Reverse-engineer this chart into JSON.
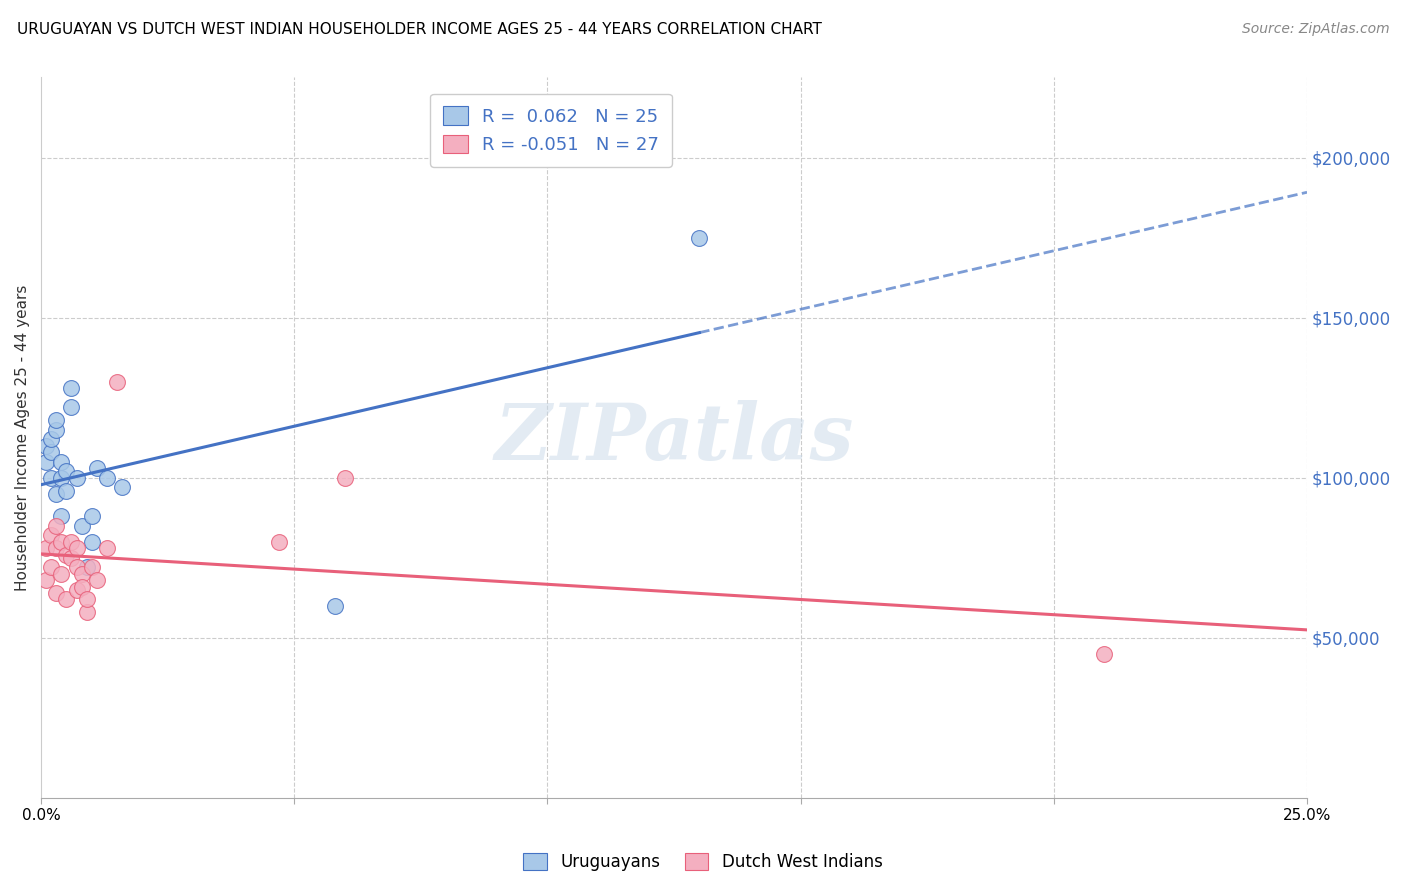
{
  "title": "URUGUAYAN VS DUTCH WEST INDIAN HOUSEHOLDER INCOME AGES 25 - 44 YEARS CORRELATION CHART",
  "source": "Source: ZipAtlas.com",
  "ylabel": "Householder Income Ages 25 - 44 years",
  "xlim": [
    0.0,
    0.25
  ],
  "ylim": [
    0,
    225000
  ],
  "yticks": [
    0,
    50000,
    100000,
    150000,
    200000
  ],
  "xticks": [
    0.0,
    0.05,
    0.1,
    0.15,
    0.2,
    0.25
  ],
  "xtick_labels": [
    "0.0%",
    "",
    "",
    "",
    "",
    "25.0%"
  ],
  "r_uruguayan": 0.062,
  "n_uruguayan": 25,
  "r_dutch": -0.051,
  "n_dutch": 27,
  "uruguayan_color": "#a8c8e8",
  "dutch_color": "#f4afc0",
  "trend_uruguayan_color": "#4472c4",
  "trend_dutch_color": "#e8607a",
  "watermark": "ZIPatlas",
  "uruguayan_x": [
    0.001,
    0.001,
    0.002,
    0.002,
    0.002,
    0.003,
    0.003,
    0.003,
    0.004,
    0.004,
    0.004,
    0.005,
    0.005,
    0.006,
    0.006,
    0.007,
    0.008,
    0.009,
    0.01,
    0.01,
    0.011,
    0.013,
    0.016,
    0.058,
    0.13
  ],
  "uruguayan_y": [
    105000,
    110000,
    108000,
    112000,
    100000,
    115000,
    118000,
    95000,
    105000,
    100000,
    88000,
    102000,
    96000,
    128000,
    122000,
    100000,
    85000,
    72000,
    88000,
    80000,
    103000,
    100000,
    97000,
    60000,
    175000
  ],
  "dutch_x": [
    0.001,
    0.001,
    0.002,
    0.002,
    0.003,
    0.003,
    0.003,
    0.004,
    0.004,
    0.005,
    0.005,
    0.006,
    0.006,
    0.007,
    0.007,
    0.007,
    0.008,
    0.008,
    0.009,
    0.009,
    0.01,
    0.011,
    0.013,
    0.015,
    0.047,
    0.06,
    0.21
  ],
  "dutch_y": [
    78000,
    68000,
    72000,
    82000,
    85000,
    78000,
    64000,
    80000,
    70000,
    76000,
    62000,
    80000,
    75000,
    72000,
    65000,
    78000,
    70000,
    66000,
    58000,
    62000,
    72000,
    68000,
    78000,
    130000,
    80000,
    100000,
    45000
  ],
  "legend_uruguayan_label": "Uruguayans",
  "legend_dutch_label": "Dutch West Indians",
  "trend_solid_end_x": 0.13,
  "trend_dashed_start_x": 0.13,
  "trend_dashed_end_x": 0.25
}
